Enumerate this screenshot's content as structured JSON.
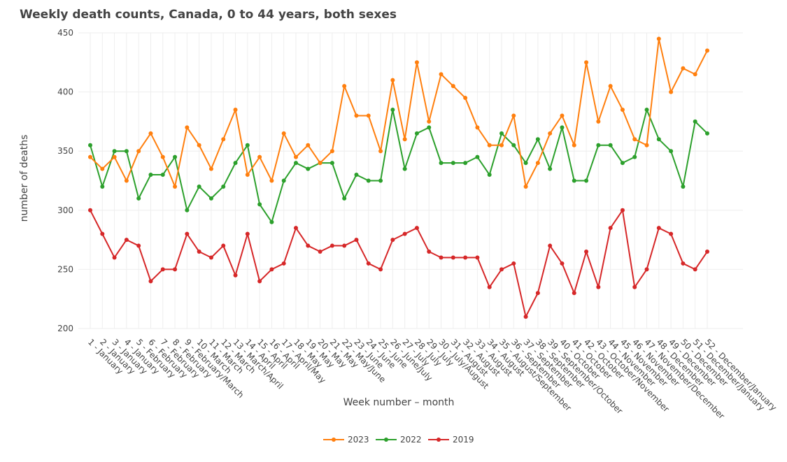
{
  "chart_data": {
    "type": "line",
    "title": "Weekly death counts, Canada, 0 to 44 years, both sexes",
    "xlabel": "Week number – month",
    "ylabel": "number of deaths",
    "ylim": [
      200,
      450
    ],
    "yticks": [
      200,
      250,
      300,
      350,
      400,
      450
    ],
    "grid": true,
    "legend_position": "bottom",
    "categories": [
      "1 - January",
      "2 - January",
      "3 - January",
      "4 - January",
      "5 - February",
      "6 - February",
      "7 - February",
      "8 - February",
      "9 - February/March",
      "10 - March",
      "11 - March",
      "12 - March",
      "13 - March/April",
      "14 - April",
      "15 - April",
      "16 - April",
      "17 - April/May",
      "18 - May",
      "19 - May",
      "20 - May",
      "21 - May",
      "22 - May/June",
      "23 - June",
      "24 - June",
      "25 - June",
      "26 - June/July",
      "27 - July",
      "28 - July",
      "29 - July",
      "30 - July/August",
      "31 - August",
      "32 - August",
      "33 - August",
      "34 - August",
      "35 - August/September",
      "36 - September",
      "37 - September",
      "38 - September",
      "39 - September/October",
      "40 - October",
      "41 - October",
      "42 - October",
      "43 - October/November",
      "44 - November",
      "45 - November",
      "46 - November",
      "47 - November/December",
      "48 - December",
      "49 - December",
      "50 - December",
      "51 - December/January",
      "52 - December/January"
    ],
    "series": [
      {
        "name": "2023",
        "color": "#ff7f0e",
        "values": [
          345,
          335,
          345,
          325,
          350,
          365,
          345,
          320,
          370,
          355,
          335,
          360,
          385,
          330,
          345,
          325,
          365,
          345,
          355,
          340,
          350,
          405,
          380,
          380,
          350,
          410,
          360,
          425,
          375,
          415,
          405,
          395,
          370,
          355,
          355,
          380,
          320,
          340,
          365,
          380,
          355,
          425,
          375,
          405,
          385,
          360,
          355,
          445,
          400,
          420,
          415,
          435
        ]
      },
      {
        "name": "2022",
        "color": "#2ca02c",
        "values": [
          355,
          320,
          350,
          350,
          310,
          330,
          330,
          345,
          300,
          320,
          310,
          320,
          340,
          355,
          305,
          290,
          325,
          340,
          335,
          340,
          340,
          310,
          330,
          325,
          325,
          385,
          335,
          365,
          370,
          340,
          340,
          340,
          345,
          330,
          365,
          355,
          340,
          360,
          335,
          370,
          325,
          325,
          355,
          355,
          340,
          345,
          385,
          360,
          350,
          320,
          375,
          365
        ]
      },
      {
        "name": "2019",
        "color": "#d62728",
        "values": [
          300,
          280,
          260,
          275,
          270,
          240,
          250,
          250,
          280,
          265,
          260,
          270,
          245,
          280,
          240,
          250,
          255,
          285,
          270,
          265,
          270,
          270,
          275,
          255,
          250,
          275,
          280,
          285,
          265,
          260,
          260,
          260,
          260,
          235,
          250,
          255,
          210,
          230,
          270,
          255,
          230,
          265,
          235,
          285,
          300,
          235,
          250,
          285,
          280,
          255,
          250,
          265
        ]
      }
    ]
  }
}
